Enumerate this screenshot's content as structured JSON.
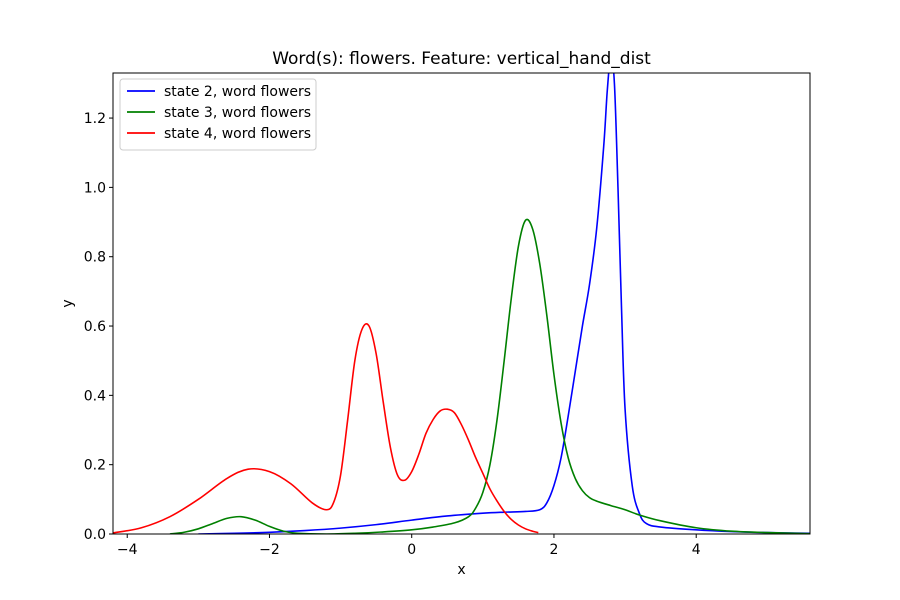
{
  "chart_data": {
    "type": "line",
    "title": "Word(s): flowers. Feature: vertical_hand_dist",
    "xlabel": "x",
    "ylabel": "y",
    "xlim": [
      -4.2,
      5.6
    ],
    "ylim": [
      0,
      1.33
    ],
    "xticks": [
      -4,
      -2,
      0,
      2,
      4
    ],
    "xtick_labels": [
      "−4",
      "−2",
      "0",
      "2",
      "4"
    ],
    "yticks": [
      0.0,
      0.2,
      0.4,
      0.6,
      0.8,
      1.0,
      1.2
    ],
    "ytick_labels": [
      "0.0",
      "0.2",
      "0.4",
      "0.6",
      "0.8",
      "1.0",
      "1.2"
    ],
    "grid": false,
    "legend_position": "top-left",
    "series": [
      {
        "name": "state 2, word flowers",
        "color": "#0000ff",
        "x": [
          -3.0,
          -2.5,
          -2.0,
          -1.5,
          -1.0,
          -0.5,
          0.0,
          0.5,
          1.0,
          1.3,
          1.6,
          1.8,
          1.9,
          2.0,
          2.1,
          2.2,
          2.3,
          2.4,
          2.5,
          2.6,
          2.7,
          2.75,
          2.8,
          2.85,
          2.9,
          2.95,
          3.0,
          3.1,
          3.2,
          3.3,
          3.5,
          4.0,
          4.5,
          5.0,
          5.6
        ],
        "y": [
          0.0,
          0.002,
          0.005,
          0.01,
          0.017,
          0.027,
          0.04,
          0.052,
          0.06,
          0.063,
          0.065,
          0.07,
          0.09,
          0.14,
          0.22,
          0.34,
          0.47,
          0.6,
          0.72,
          0.88,
          1.12,
          1.28,
          1.38,
          1.3,
          1.0,
          0.65,
          0.36,
          0.14,
          0.06,
          0.03,
          0.02,
          0.012,
          0.007,
          0.004,
          0.002
        ]
      },
      {
        "name": "state 3, word flowers",
        "color": "#008000",
        "x": [
          -3.4,
          -3.2,
          -3.0,
          -2.8,
          -2.6,
          -2.4,
          -2.2,
          -2.0,
          -1.8,
          -1.6,
          -1.2,
          -0.8,
          -0.4,
          0.0,
          0.3,
          0.6,
          0.8,
          0.9,
          1.0,
          1.1,
          1.2,
          1.3,
          1.4,
          1.5,
          1.6,
          1.7,
          1.8,
          1.9,
          2.0,
          2.1,
          2.2,
          2.3,
          2.4,
          2.5,
          2.6,
          2.8,
          3.0,
          3.2,
          3.5,
          4.0,
          4.5,
          5.0,
          5.6
        ],
        "y": [
          0.0,
          0.005,
          0.015,
          0.03,
          0.045,
          0.05,
          0.04,
          0.022,
          0.008,
          0.002,
          0.0,
          0.002,
          0.006,
          0.012,
          0.02,
          0.032,
          0.05,
          0.075,
          0.12,
          0.2,
          0.33,
          0.5,
          0.68,
          0.83,
          0.905,
          0.88,
          0.78,
          0.63,
          0.46,
          0.32,
          0.22,
          0.16,
          0.125,
          0.105,
          0.095,
          0.082,
          0.07,
          0.055,
          0.038,
          0.018,
          0.008,
          0.004,
          0.001
        ]
      },
      {
        "name": "state 4, word flowers",
        "color": "#ff0000",
        "x": [
          -4.2,
          -3.8,
          -3.4,
          -3.0,
          -2.6,
          -2.3,
          -2.0,
          -1.7,
          -1.4,
          -1.2,
          -1.1,
          -1.0,
          -0.9,
          -0.8,
          -0.7,
          -0.6,
          -0.5,
          -0.4,
          -0.3,
          -0.2,
          -0.1,
          0.0,
          0.1,
          0.2,
          0.3,
          0.4,
          0.5,
          0.6,
          0.7,
          0.8,
          0.9,
          1.0,
          1.1,
          1.2,
          1.3,
          1.4,
          1.5,
          1.6,
          1.7,
          1.78
        ],
        "y": [
          0.003,
          0.018,
          0.05,
          0.1,
          0.16,
          0.187,
          0.18,
          0.145,
          0.09,
          0.07,
          0.09,
          0.17,
          0.33,
          0.5,
          0.59,
          0.6,
          0.52,
          0.38,
          0.25,
          0.17,
          0.155,
          0.18,
          0.23,
          0.29,
          0.33,
          0.355,
          0.36,
          0.35,
          0.315,
          0.27,
          0.22,
          0.175,
          0.13,
          0.095,
          0.065,
          0.042,
          0.026,
          0.015,
          0.008,
          0.004
        ]
      }
    ]
  }
}
